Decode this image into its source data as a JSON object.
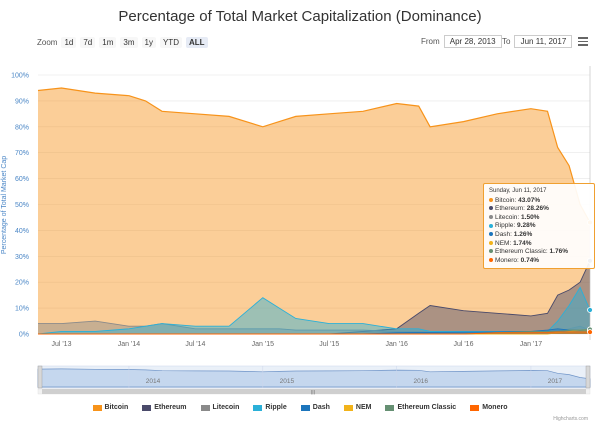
{
  "title": "Percentage of Total Market Capitalization (Dominance)",
  "zoom": {
    "label": "Zoom",
    "buttons": [
      "1d",
      "7d",
      "1m",
      "3m",
      "1y",
      "YTD",
      "ALL"
    ],
    "active": "ALL"
  },
  "range": {
    "from_label": "From",
    "from_value": "Apr 28, 2013",
    "to_label": "To",
    "to_value": "Jun 11, 2017"
  },
  "credits": "Highcharts.com",
  "tooltip": {
    "date": "Sunday, Jun 11, 2017",
    "rows": [
      {
        "name": "Bitcoin:",
        "value": "43.07%",
        "color": "#f7931a"
      },
      {
        "name": "Ethereum:",
        "value": "28.26%",
        "color": "#4a4a6a"
      },
      {
        "name": "Litecoin:",
        "value": "1.50%",
        "color": "#8a8a8a"
      },
      {
        "name": "Ripple:",
        "value": "9.28%",
        "color": "#2ab0d8"
      },
      {
        "name": "Dash:",
        "value": "1.26%",
        "color": "#1c75bc"
      },
      {
        "name": "NEM:",
        "value": "1.74%",
        "color": "#f2b31a"
      },
      {
        "name": "Ethereum Classic:",
        "value": "1.76%",
        "color": "#669073"
      },
      {
        "name": "Monero:",
        "value": "0.74%",
        "color": "#ff6600"
      }
    ]
  },
  "navigator_years": [
    "2014",
    "2015",
    "2016",
    "2017"
  ],
  "chart_data": {
    "type": "area",
    "title": "Percentage of Total Market Capitalization (Dominance)",
    "ylabel": "Percentage of Total Market Cap",
    "ylim": [
      0,
      100
    ],
    "yticks": [
      "0%",
      "10%",
      "20%",
      "30%",
      "40%",
      "50%",
      "60%",
      "70%",
      "80%",
      "90%",
      "100%"
    ],
    "xticks": [
      "Jul '13",
      "Jan '14",
      "Jul '14",
      "Jan '15",
      "Jul '15",
      "Jan '16",
      "Jul '16",
      "Jan '17"
    ],
    "x": [
      "2013-04-28",
      "2013-07-01",
      "2013-10-01",
      "2014-01-01",
      "2014-02-15",
      "2014-04-01",
      "2014-07-01",
      "2014-10-01",
      "2015-01-01",
      "2015-02-15",
      "2015-04-01",
      "2015-07-01",
      "2015-10-01",
      "2016-01-01",
      "2016-03-01",
      "2016-04-01",
      "2016-07-01",
      "2016-10-01",
      "2017-01-01",
      "2017-02-15",
      "2017-03-15",
      "2017-04-15",
      "2017-05-15",
      "2017-06-11"
    ],
    "series": [
      {
        "name": "Bitcoin",
        "color": "#f7931a",
        "values": [
          94,
          95,
          93,
          92,
          90,
          86,
          85,
          84,
          80,
          82,
          84,
          85,
          86,
          89,
          88,
          80,
          82,
          85,
          87,
          86,
          72,
          65,
          50,
          43.07
        ]
      },
      {
        "name": "Ethereum",
        "color": "#4a4a6a",
        "values": [
          0,
          0,
          0,
          0,
          0,
          0,
          0,
          0,
          0,
          0,
          0,
          0,
          1,
          2,
          8,
          11,
          9,
          8,
          7,
          8,
          15,
          17,
          20,
          28.26
        ]
      },
      {
        "name": "Litecoin",
        "color": "#8a8a8a",
        "values": [
          4,
          4,
          5,
          3,
          3,
          4,
          2,
          2,
          2,
          2,
          1.5,
          1.5,
          1.5,
          1,
          1,
          1,
          1,
          1,
          1,
          1,
          1,
          2,
          3,
          1.5
        ]
      },
      {
        "name": "Ripple",
        "color": "#2ab0d8",
        "values": [
          0,
          1,
          1,
          2,
          3,
          4,
          3,
          3,
          14,
          10,
          6,
          4,
          4,
          2,
          2,
          1,
          1,
          1,
          1,
          1,
          5,
          11,
          18,
          9.28
        ]
      },
      {
        "name": "Dash",
        "color": "#1c75bc",
        "values": [
          0,
          0,
          0,
          0,
          0,
          0,
          0,
          0,
          0,
          0,
          0,
          0,
          0,
          0.5,
          0.6,
          0.6,
          0.7,
          0.8,
          1,
          1.5,
          2,
          1.5,
          1.3,
          1.26
        ]
      },
      {
        "name": "NEM",
        "color": "#f2b31a",
        "values": [
          0,
          0,
          0,
          0,
          0,
          0,
          0,
          0,
          0,
          0,
          0,
          0,
          0,
          0,
          0,
          0,
          0,
          0,
          0,
          0,
          0.5,
          1,
          1.5,
          1.74
        ]
      },
      {
        "name": "Ethereum Classic",
        "color": "#669073",
        "values": [
          0,
          0,
          0,
          0,
          0,
          0,
          0,
          0,
          0,
          0,
          0,
          0,
          0,
          0,
          0,
          0,
          0,
          0.5,
          1,
          1,
          1,
          1.5,
          1.5,
          1.76
        ]
      },
      {
        "name": "Monero",
        "color": "#ff6600",
        "values": [
          0,
          0,
          0,
          0,
          0,
          0,
          0,
          0,
          0,
          0,
          0,
          0,
          0,
          0,
          0,
          0,
          0,
          0.5,
          0.5,
          0.6,
          0.8,
          0.8,
          0.8,
          0.74
        ]
      }
    ]
  }
}
